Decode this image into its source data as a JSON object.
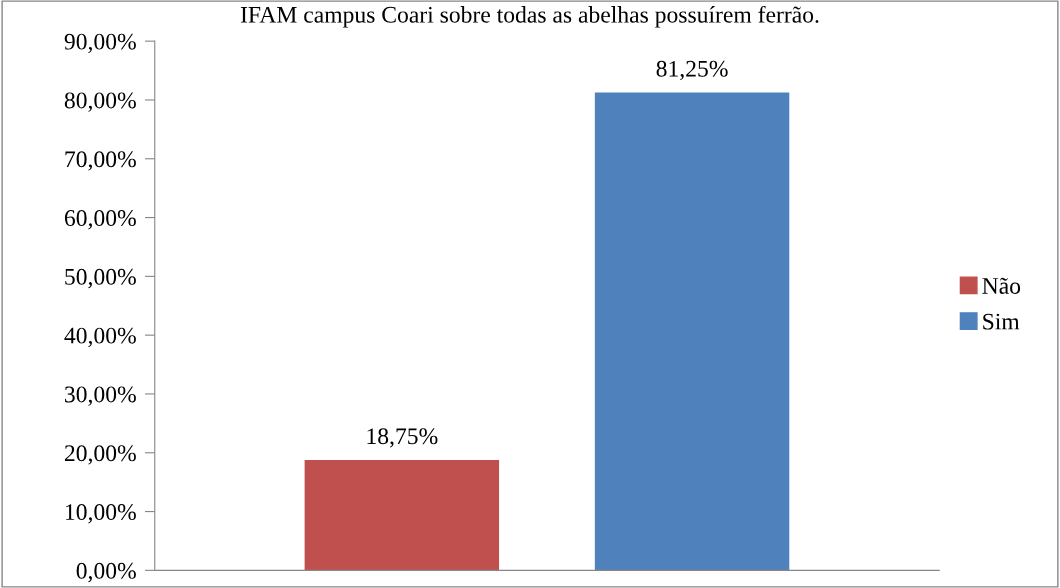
{
  "chart_data": {
    "type": "bar",
    "title": "IFAM campus Coari sobre todas as abelhas possuírem ferrão.",
    "categories": [
      null
    ],
    "series": [
      {
        "name": "Não",
        "color": "#c0504d",
        "values": [
          18.75
        ],
        "value_labels": [
          "18,75%"
        ]
      },
      {
        "name": "Sim",
        "color": "#4f81bd",
        "values": [
          81.25
        ],
        "value_labels": [
          "81,25%"
        ]
      }
    ],
    "ylim": [
      0,
      90
    ],
    "yticks": [
      {
        "value": 0,
        "label": "0,00%"
      },
      {
        "value": 10,
        "label": "10,00%"
      },
      {
        "value": 20,
        "label": "20,00%"
      },
      {
        "value": 30,
        "label": "30,00%"
      },
      {
        "value": 40,
        "label": "40,00%"
      },
      {
        "value": 50,
        "label": "50,00%"
      },
      {
        "value": 60,
        "label": "60,00%"
      },
      {
        "value": 70,
        "label": "70,00%"
      },
      {
        "value": 80,
        "label": "80,00%"
      },
      {
        "value": 90,
        "label": "90,00%"
      }
    ],
    "grid": false,
    "legend": "right"
  }
}
